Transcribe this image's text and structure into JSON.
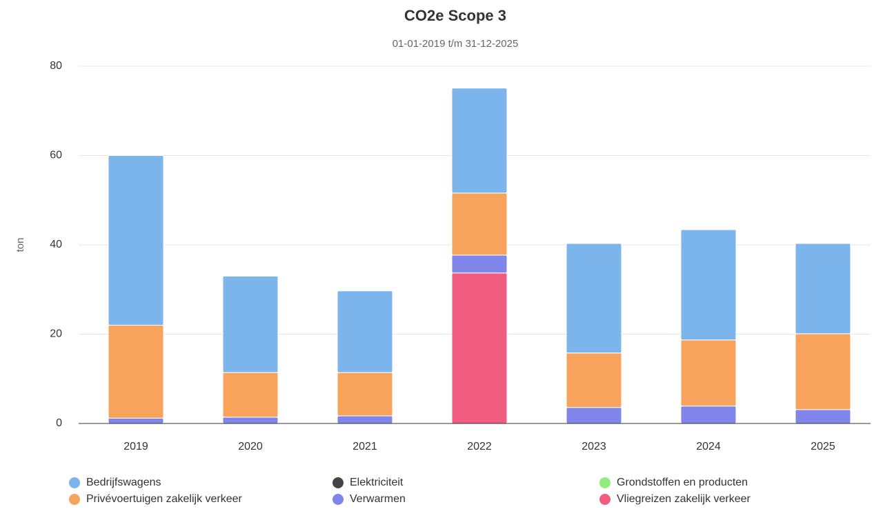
{
  "chart_data": {
    "type": "stacked_bar",
    "title": "CO2e Scope 3",
    "subtitle": "01-01-2019 t/m 31-12-2025",
    "y_label": "ton",
    "categories": [
      "2019",
      "2020",
      "2021",
      "2022",
      "2023",
      "2024",
      "2025"
    ],
    "series": [
      {
        "name": "Bedrijfswagens",
        "color": "#7cb5ec",
        "values": [
          38,
          21.6,
          18.3,
          23.5,
          24.5,
          24.7,
          20.2
        ]
      },
      {
        "name": "Elektriciteit",
        "color": "#434348",
        "values": [
          0,
          0,
          0,
          0,
          0,
          0,
          0
        ]
      },
      {
        "name": "Grondstoffen en producten",
        "color": "#90ed7d",
        "values": [
          0,
          0,
          0,
          0,
          0,
          0,
          0
        ]
      },
      {
        "name": "Privévoertuigen zakelijk verkeer",
        "color": "#f7a35c",
        "values": [
          20.8,
          10,
          9.7,
          13.9,
          12.2,
          14.8,
          17
        ]
      },
      {
        "name": "Verwarmen",
        "color": "#8085e9",
        "values": [
          1.2,
          1.4,
          1.7,
          4,
          3.6,
          3.9,
          3.1
        ]
      },
      {
        "name": "Vliegreizen zakelijk verkeer",
        "color": "#f15c80",
        "values": [
          0,
          0,
          0,
          33.7,
          0,
          0,
          0
        ]
      }
    ],
    "ylim": [
      0,
      80
    ],
    "yticks": [
      0,
      20,
      40,
      60,
      80
    ],
    "grid": true
  }
}
